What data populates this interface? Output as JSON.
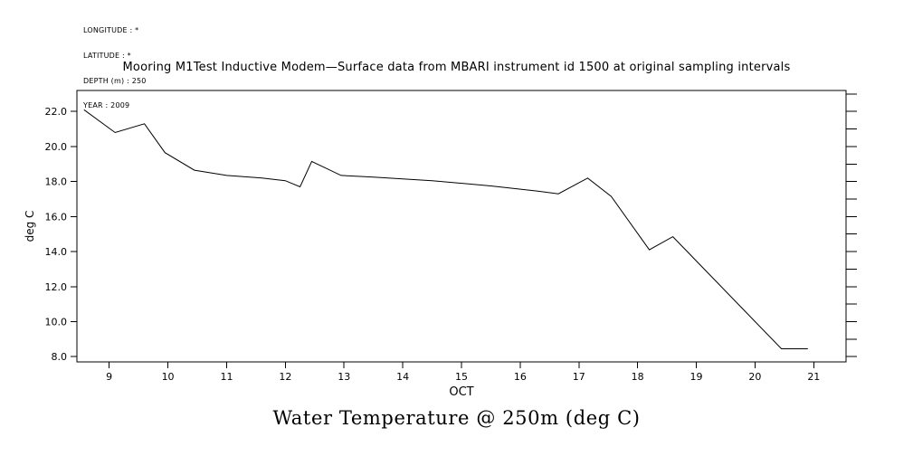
{
  "meta": {
    "longitude": "LONGITUDE : *",
    "latitude": "LATITUDE : *",
    "depth": "DEPTH (m) : 250",
    "year": "YEAR : 2009"
  },
  "title": "Mooring M1Test Inductive Modem—Surface data from MBARI instrument id 1500 at original sampling intervals",
  "caption": "Water Temperature @ 250m (deg C)",
  "colors": {
    "foreground": "#000000",
    "background": "#ffffff"
  },
  "chart_data": {
    "type": "line",
    "title": "Mooring M1Test Inductive Modem—Surface data from MBARI instrument id 1500 at original sampling intervals",
    "xlabel": "OCT",
    "ylabel": "deg C",
    "xlim": [
      8.45,
      21.55
    ],
    "ylim": [
      7.7,
      23.2
    ],
    "xticks": [
      9,
      10,
      11,
      12,
      13,
      14,
      15,
      16,
      17,
      18,
      19,
      20,
      21
    ],
    "xtick_labels": [
      "9",
      "10",
      "11",
      "12",
      "13",
      "14",
      "15",
      "16",
      "17",
      "18",
      "19",
      "20",
      "21"
    ],
    "yticks": [
      8,
      10,
      12,
      14,
      16,
      18,
      20,
      22
    ],
    "ytick_labels": [
      "8.0",
      "10.0",
      "12.0",
      "14.0",
      "16.0",
      "18.0",
      "20.0",
      "22.0"
    ],
    "right_axis_tick_step": 1,
    "grid": false,
    "legend": "none",
    "line_color": "#000000",
    "series": [
      {
        "name": "Water Temperature @ 250m (deg C)",
        "points": [
          [
            8.57,
            22.1
          ],
          [
            9.1,
            20.8
          ],
          [
            9.6,
            21.3
          ],
          [
            9.95,
            19.65
          ],
          [
            10.45,
            18.65
          ],
          [
            11.0,
            18.35
          ],
          [
            11.6,
            18.2
          ],
          [
            12.0,
            18.05
          ],
          [
            12.25,
            17.7
          ],
          [
            12.45,
            19.15
          ],
          [
            12.95,
            18.35
          ],
          [
            13.5,
            18.25
          ],
          [
            14.5,
            18.05
          ],
          [
            15.5,
            17.75
          ],
          [
            16.3,
            17.45
          ],
          [
            16.65,
            17.3
          ],
          [
            17.15,
            18.2
          ],
          [
            17.55,
            17.15
          ],
          [
            18.2,
            14.1
          ],
          [
            18.6,
            14.85
          ],
          [
            20.45,
            8.45
          ],
          [
            20.9,
            8.45
          ]
        ]
      }
    ]
  }
}
